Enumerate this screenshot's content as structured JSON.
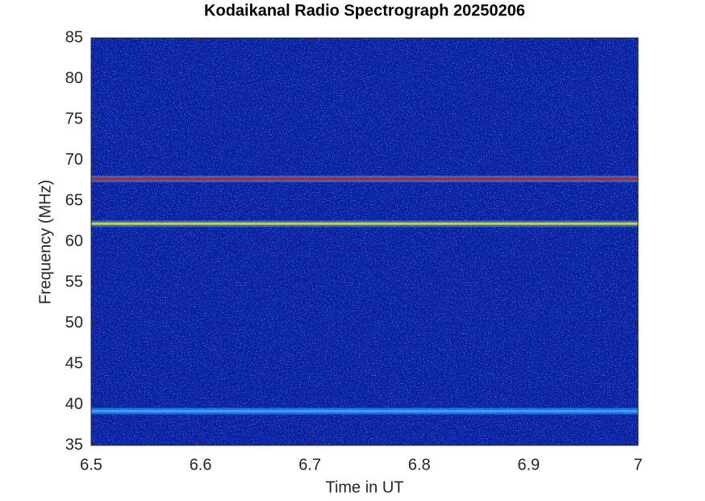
{
  "chart_data": {
    "type": "spectrogram",
    "title": "Kodaikanal Radio Spectrograph  20250206",
    "x_label": "Time in UT",
    "y_label": "Frequency (MHz)",
    "xlim": [
      6.5,
      7
    ],
    "xticks": [
      6.5,
      6.6,
      6.7,
      6.8,
      6.9,
      7
    ],
    "ylim": [
      35,
      85
    ],
    "yticks": [
      35,
      40,
      45,
      50,
      55,
      60,
      65,
      70,
      75,
      80,
      85
    ],
    "background_color": "#0a1e9e",
    "emission_bands": [
      {
        "frequency": 67.7,
        "color": "#c81e1e"
      },
      {
        "frequency": 62.2,
        "color": "#e6c828"
      },
      {
        "frequency": 39.2,
        "color": "#3c9cff"
      }
    ]
  }
}
